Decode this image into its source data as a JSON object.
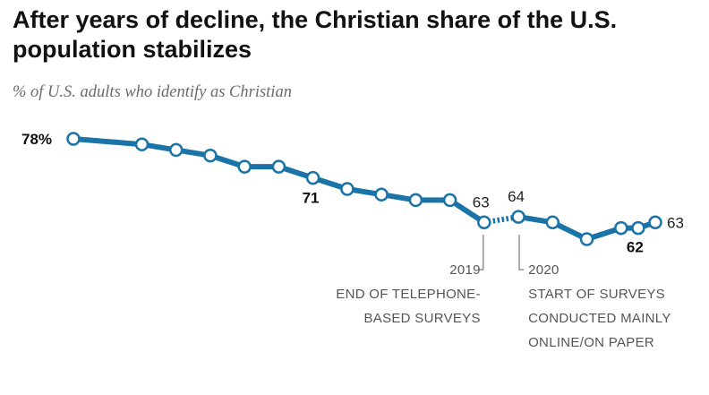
{
  "title": "After years of decline, the Christian share of the U.S. population stabilizes",
  "subtitle": "% of U.S. adults who identify as Christian",
  "colors": {
    "line": "#1a74a8",
    "marker_fill": "#ffffff"
  },
  "chart_data": {
    "type": "line",
    "title": "After years of decline, the Christian share of the U.S. population stabilizes",
    "subtitle": "% of U.S. adults who identify as Christian",
    "xlabel": "",
    "ylabel": "",
    "xlim": [
      2007,
      2024
    ],
    "ylim": [
      60,
      80
    ],
    "grid": false,
    "legend": "none",
    "series": [
      {
        "segment": "telephone",
        "line_style": "solid",
        "x": [
          2007,
          2009,
          2010,
          2011,
          2012,
          2013,
          2014,
          2015,
          2016,
          2017,
          2018,
          2019
        ],
        "values": [
          78,
          77,
          76,
          75,
          73,
          73,
          71,
          69,
          68,
          67,
          67,
          63
        ]
      },
      {
        "segment": "mode-transition",
        "line_style": "dotted",
        "x": [
          2019,
          2020
        ],
        "values": [
          63,
          64
        ]
      },
      {
        "segment": "online-paper",
        "line_style": "solid",
        "x": [
          2020,
          2021,
          2022,
          2023,
          2023.5,
          2024
        ],
        "values": [
          64,
          63,
          60,
          62,
          62,
          63
        ]
      }
    ],
    "data_labels": [
      {
        "x": 2007,
        "y": 78,
        "text": "78%",
        "bold": true,
        "dx": -58,
        "dy": 6
      },
      {
        "x": 2014,
        "y": 71,
        "text": "71",
        "bold": true,
        "dx": -12,
        "dy": 28
      },
      {
        "x": 2019,
        "y": 63,
        "text": "63",
        "bold": false,
        "dx": -13,
        "dy": -17
      },
      {
        "x": 2020,
        "y": 64,
        "text": "64",
        "bold": false,
        "dx": -12,
        "dy": -17
      },
      {
        "x": 2023.5,
        "y": 62,
        "text": "62",
        "bold": true,
        "dx": -13,
        "dy": 27
      },
      {
        "x": 2024,
        "y": 63,
        "text": "63",
        "bold": false,
        "dx": 13,
        "dy": 6
      }
    ],
    "annotations": [
      {
        "x": 2019,
        "side": "left",
        "lines": [
          "2019",
          "END OF TELEPHONE-",
          "BASED SURVEYS"
        ]
      },
      {
        "x": 2020,
        "side": "right",
        "lines": [
          "2020",
          "START OF SURVEYS",
          "CONDUCTED MAINLY",
          "ONLINE/ON PAPER"
        ]
      }
    ]
  }
}
